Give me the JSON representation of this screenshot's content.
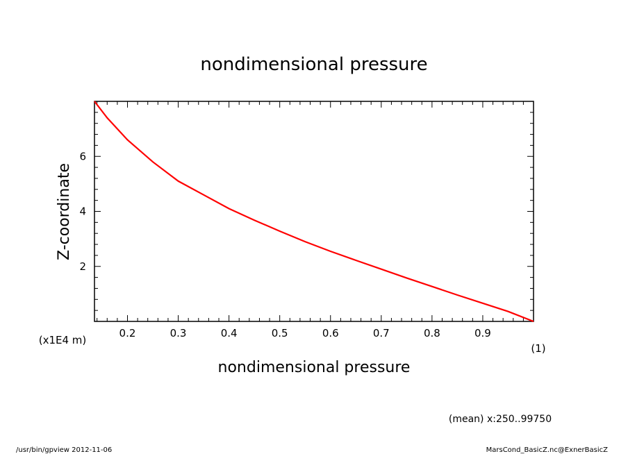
{
  "chart_data": {
    "type": "line",
    "title": "nondimensional pressure",
    "xlabel": "nondimensional pressure",
    "ylabel": "Z-coordinate",
    "x_unit": "(1)",
    "y_unit": "(x1E4 m)",
    "xlim": [
      0.135,
      1.0
    ],
    "ylim": [
      0.0,
      8.0
    ],
    "x_ticks": [
      "0.2",
      "0.3",
      "0.4",
      "0.5",
      "0.6",
      "0.7",
      "0.8",
      "0.9"
    ],
    "y_ticks": [
      "2",
      "4",
      "6"
    ],
    "grid": false,
    "color": "#ff0000",
    "series": [
      {
        "x": [
          0.135,
          0.16,
          0.2,
          0.25,
          0.3,
          0.35,
          0.4,
          0.45,
          0.5,
          0.55,
          0.6,
          0.65,
          0.7,
          0.75,
          0.8,
          0.85,
          0.9,
          0.95,
          1.0
        ],
        "y": [
          8.0,
          7.4,
          6.6,
          5.8,
          5.1,
          4.6,
          4.1,
          3.68,
          3.28,
          2.9,
          2.55,
          2.22,
          1.9,
          1.58,
          1.27,
          0.96,
          0.66,
          0.36,
          0.0
        ]
      }
    ]
  },
  "footer": {
    "mean_note": "(mean) x:250..99750",
    "program": "/usr/bin/gpview   2012-11-06",
    "source_file": "MarsCond_BasicZ.nc@ExnerBasicZ"
  }
}
